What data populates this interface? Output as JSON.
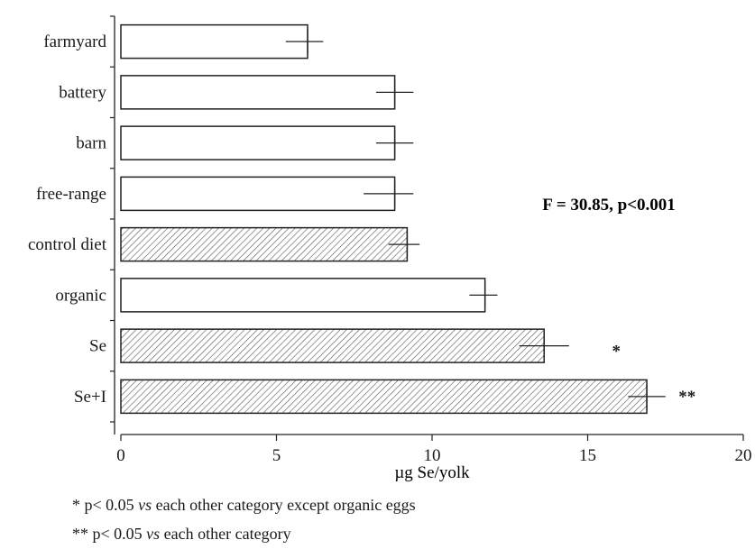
{
  "chart_data": {
    "type": "bar",
    "orientation": "horizontal",
    "categories": [
      "farmyard",
      "battery",
      "barn",
      "free-range",
      "control diet",
      "organic",
      "Se",
      "Se+I"
    ],
    "values": [
      6.0,
      8.8,
      8.8,
      8.8,
      9.2,
      11.7,
      13.6,
      16.9
    ],
    "error_low": [
      5.3,
      8.2,
      8.2,
      7.8,
      8.6,
      11.2,
      12.8,
      16.3
    ],
    "error_high": [
      6.5,
      9.4,
      9.4,
      9.4,
      9.6,
      12.1,
      14.4,
      17.5
    ],
    "hatched": [
      false,
      false,
      false,
      false,
      true,
      false,
      true,
      true
    ],
    "significance_marks": [
      "",
      "",
      "",
      "",
      "",
      "",
      "*",
      "**"
    ],
    "xlabel": "µg Se/yolk",
    "ylabel": "",
    "title": "",
    "xlim": [
      0,
      20
    ],
    "xticks": [
      0,
      5,
      10,
      15,
      20
    ],
    "grid": false,
    "legend": "none",
    "annotation": "F = 30.85, p<0.001"
  },
  "footnotes": [
    {
      "prefix": "* p< 0.05 ",
      "italic": "vs",
      "suffix": " each other category except organic eggs"
    },
    {
      "prefix": "** p< 0.05 ",
      "italic": "vs",
      "suffix": " each other category"
    }
  ]
}
